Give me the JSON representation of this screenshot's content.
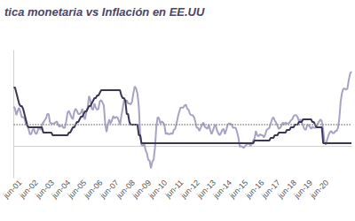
{
  "chart_data": {
    "type": "line",
    "title": "tica monetaria vs Inflación en EE.UU",
    "categories": [
      null,
      null,
      null,
      null,
      null,
      "jun-01",
      null,
      null,
      null,
      null,
      null,
      null,
      null,
      null,
      null,
      null,
      null,
      "jun-02",
      null,
      null,
      null,
      null,
      null,
      null,
      null,
      null,
      null,
      null,
      null,
      "jun-03",
      null,
      null,
      null,
      null,
      null,
      null,
      null,
      null,
      null,
      null,
      null,
      "jun-04",
      null,
      null,
      null,
      null,
      null,
      null,
      null,
      null,
      null,
      null,
      null,
      "jun-05",
      null,
      null,
      null,
      null,
      null,
      null,
      null,
      null,
      null,
      null,
      null,
      "jun-06",
      null,
      null,
      null,
      null,
      null,
      null,
      null,
      null,
      null,
      null,
      null,
      "jun-07",
      null,
      null,
      null,
      null,
      null,
      null,
      null,
      null,
      null,
      null,
      null,
      "jun-08",
      null,
      null,
      null,
      null,
      null,
      null,
      null,
      null,
      null,
      null,
      null,
      "jun-09",
      null,
      null,
      null,
      null,
      null,
      null,
      null,
      null,
      null,
      null,
      null,
      "jun-10",
      null,
      null,
      null,
      null,
      null,
      null,
      null,
      null,
      null,
      null,
      null,
      "jun-11",
      null,
      null,
      null,
      null,
      null,
      null,
      null,
      null,
      null,
      null,
      null,
      "jun-12",
      null,
      null,
      null,
      null,
      null,
      null,
      null,
      null,
      null,
      null,
      null,
      "jun-13",
      null,
      null,
      null,
      null,
      null,
      null,
      null,
      null,
      null,
      null,
      null,
      "jun-14",
      null,
      null,
      null,
      null,
      null,
      null,
      null,
      null,
      null,
      null,
      null,
      "jun-15",
      null,
      null,
      null,
      null,
      null,
      null,
      null,
      null,
      null,
      null,
      null,
      "jun-16",
      null,
      null,
      null,
      null,
      null,
      null,
      null,
      null,
      null,
      null,
      null,
      "jun-17",
      null,
      null,
      null,
      null,
      null,
      null,
      null,
      null,
      null,
      null,
      null,
      "jun-18",
      null,
      null,
      null,
      null,
      null,
      null,
      null,
      null,
      null,
      null,
      null,
      "jun-19",
      null,
      null,
      null,
      null,
      null,
      null,
      null,
      null,
      null,
      null,
      null,
      "jun-20",
      null,
      null,
      null,
      null,
      null,
      null,
      null,
      null,
      null,
      null,
      null,
      null,
      null,
      null,
      null,
      null,
      null,
      null
    ],
    "series": [
      {
        "color": "#a7a3c4",
        "values": [
          3.7,
          3.5,
          2.9,
          3.3,
          3.6,
          3.2,
          2.7,
          2.7,
          2.6,
          2.1,
          1.9,
          1.6,
          1.1,
          1.1,
          1.5,
          1.6,
          1.2,
          1.1,
          1.5,
          1.8,
          1.5,
          2.0,
          2.2,
          2.4,
          2.6,
          3.0,
          3.0,
          2.2,
          2.1,
          2.1,
          2.1,
          2.2,
          2.3,
          2.0,
          1.8,
          1.9,
          1.9,
          1.7,
          1.7,
          2.3,
          3.1,
          3.3,
          3.0,
          2.7,
          2.5,
          3.2,
          3.5,
          3.3,
          3.0,
          3.0,
          3.1,
          3.5,
          2.8,
          2.5,
          3.2,
          3.6,
          4.7,
          4.3,
          3.5,
          3.4,
          4.0,
          3.6,
          3.4,
          3.5,
          4.2,
          4.3,
          4.1,
          3.8,
          2.1,
          1.3,
          2.0,
          2.5,
          2.1,
          2.4,
          2.8,
          2.6,
          2.7,
          2.7,
          2.4,
          2.0,
          2.8,
          3.5,
          4.3,
          4.1,
          4.3,
          4.0,
          4.0,
          3.9,
          4.2,
          5.0,
          5.6,
          5.4,
          4.9,
          3.7,
          1.1,
          0.1,
          0.0,
          0.2,
          -0.4,
          -0.7,
          -1.3,
          -1.4,
          -2.1,
          -1.5,
          -1.3,
          -0.2,
          1.8,
          2.7,
          2.6,
          2.1,
          2.3,
          2.2,
          2.0,
          1.1,
          1.2,
          1.1,
          1.1,
          1.2,
          1.1,
          1.5,
          1.6,
          2.1,
          2.7,
          3.2,
          3.6,
          3.6,
          3.6,
          3.8,
          3.9,
          3.5,
          3.4,
          3.0,
          2.9,
          2.9,
          2.7,
          2.3,
          1.7,
          1.7,
          1.4,
          1.7,
          2.0,
          2.2,
          1.8,
          1.7,
          1.6,
          2.0,
          1.5,
          1.1,
          1.4,
          1.8,
          2.0,
          1.5,
          1.2,
          1.0,
          1.2,
          1.5,
          1.6,
          1.1,
          1.5,
          2.0,
          2.1,
          2.1,
          2.0,
          1.7,
          1.7,
          1.7,
          1.3,
          0.8,
          -0.1,
          0.0,
          -0.1,
          -0.2,
          0.0,
          0.1,
          0.2,
          0.2,
          0.0,
          0.2,
          0.5,
          0.7,
          1.4,
          1.0,
          0.9,
          1.1,
          1.0,
          1.0,
          0.8,
          1.1,
          1.5,
          1.6,
          1.7,
          2.1,
          2.5,
          2.7,
          2.4,
          2.2,
          1.9,
          1.6,
          1.7,
          1.9,
          2.2,
          2.0,
          2.2,
          2.1,
          2.1,
          2.2,
          2.4,
          2.5,
          2.8,
          2.9,
          2.9,
          2.7,
          2.3,
          2.5,
          2.2,
          1.9,
          1.6,
          1.5,
          1.9,
          2.0,
          1.8,
          1.6,
          1.8,
          1.7,
          1.7,
          1.8,
          2.1,
          2.3,
          2.5,
          2.3,
          1.5,
          0.3,
          0.1,
          0.6,
          1.0,
          1.3,
          1.4,
          1.2,
          1.2,
          1.4,
          1.4,
          1.7,
          2.6,
          4.2,
          5.0,
          5.4,
          5.4,
          5.3,
          5.4,
          6.2,
          6.8,
          7.0
        ]
      },
      {
        "color": "#3b3656",
        "values": [
          5.5,
          5.5,
          5.0,
          4.5,
          4.0,
          3.75,
          3.75,
          3.5,
          3.0,
          2.5,
          2.0,
          1.75,
          1.75,
          1.75,
          1.75,
          1.75,
          1.75,
          1.75,
          1.75,
          1.75,
          1.75,
          1.75,
          1.25,
          1.25,
          1.25,
          1.25,
          1.25,
          1.25,
          1.25,
          1.0,
          1.0,
          1.0,
          1.0,
          1.0,
          1.0,
          1.0,
          1.0,
          1.0,
          1.0,
          1.0,
          1.0,
          1.25,
          1.25,
          1.5,
          1.75,
          1.75,
          2.0,
          2.25,
          2.25,
          2.5,
          2.75,
          2.75,
          3.0,
          3.25,
          3.25,
          3.5,
          3.75,
          3.75,
          4.0,
          4.25,
          4.5,
          4.5,
          4.75,
          4.75,
          5.0,
          5.25,
          5.25,
          5.25,
          5.25,
          5.25,
          5.25,
          5.25,
          5.25,
          5.25,
          5.25,
          5.25,
          5.25,
          5.25,
          5.25,
          5.25,
          4.75,
          4.5,
          4.5,
          4.25,
          3.0,
          3.0,
          2.25,
          2.0,
          2.0,
          2.0,
          2.0,
          2.0,
          2.0,
          1.0,
          1.0,
          0.25,
          0.25,
          0.25,
          0.25,
          0.25,
          0.25,
          0.25,
          0.25,
          0.25,
          0.25,
          0.25,
          0.25,
          0.25,
          0.25,
          0.25,
          0.25,
          0.25,
          0.25,
          0.25,
          0.25,
          0.25,
          0.25,
          0.25,
          0.25,
          0.25,
          0.25,
          0.25,
          0.25,
          0.25,
          0.25,
          0.25,
          0.25,
          0.25,
          0.25,
          0.25,
          0.25,
          0.25,
          0.25,
          0.25,
          0.25,
          0.25,
          0.25,
          0.25,
          0.25,
          0.25,
          0.25,
          0.25,
          0.25,
          0.25,
          0.25,
          0.25,
          0.25,
          0.25,
          0.25,
          0.25,
          0.25,
          0.25,
          0.25,
          0.25,
          0.25,
          0.25,
          0.25,
          0.25,
          0.25,
          0.25,
          0.25,
          0.25,
          0.25,
          0.25,
          0.25,
          0.25,
          0.25,
          0.25,
          0.25,
          0.25,
          0.25,
          0.25,
          0.25,
          0.25,
          0.25,
          0.25,
          0.25,
          0.25,
          0.25,
          0.5,
          0.5,
          0.5,
          0.5,
          0.5,
          0.5,
          0.5,
          0.5,
          0.5,
          0.5,
          0.5,
          0.5,
          0.75,
          0.75,
          0.75,
          1.0,
          1.0,
          1.0,
          1.25,
          1.25,
          1.25,
          1.25,
          1.25,
          1.25,
          1.5,
          1.5,
          1.5,
          1.75,
          1.75,
          1.75,
          2.0,
          2.0,
          2.0,
          2.25,
          2.25,
          2.25,
          2.5,
          2.5,
          2.5,
          2.5,
          2.5,
          2.5,
          2.5,
          2.25,
          2.25,
          2.0,
          1.75,
          1.75,
          1.75,
          1.75,
          1.75,
          0.25,
          0.25,
          0.25,
          0.25,
          0.25,
          0.25,
          0.25,
          0.25,
          0.25,
          0.25,
          0.25,
          0.25,
          0.25,
          0.25,
          0.25,
          0.25,
          0.25,
          0.25,
          0.25,
          0.25,
          0.25,
          0.25
        ]
      }
    ],
    "ylim": [
      -3,
      9
    ],
    "target": 2,
    "grid": false,
    "tick_labels": "x"
  }
}
